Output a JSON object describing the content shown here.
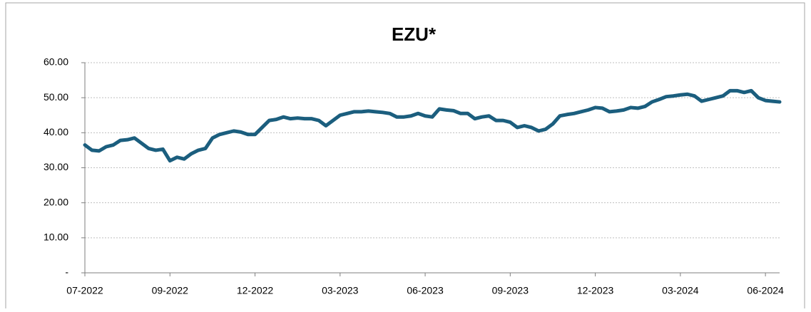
{
  "chart_data": {
    "type": "line",
    "title": "EZU*",
    "categories": [
      "07-2022",
      null,
      null,
      null,
      null,
      null,
      null,
      null,
      null,
      null,
      null,
      null,
      "09-2022",
      null,
      null,
      null,
      null,
      null,
      null,
      null,
      null,
      null,
      null,
      null,
      "12-2022",
      null,
      null,
      null,
      null,
      null,
      null,
      null,
      null,
      null,
      null,
      null,
      "03-2023",
      null,
      null,
      null,
      null,
      null,
      null,
      null,
      null,
      null,
      null,
      null,
      "06-2023",
      null,
      null,
      null,
      null,
      null,
      null,
      null,
      null,
      null,
      null,
      null,
      "09-2023",
      null,
      null,
      null,
      null,
      null,
      null,
      null,
      null,
      null,
      null,
      null,
      "12-2023",
      null,
      null,
      null,
      null,
      null,
      null,
      null,
      null,
      null,
      null,
      null,
      "03-2024",
      null,
      null,
      null,
      null,
      null,
      null,
      null,
      null,
      null,
      null,
      null,
      "06-2024",
      null,
      null
    ],
    "series": [
      {
        "name": "EZU",
        "color": "#1b5e7e",
        "values": [
          36.5,
          35,
          34.8,
          36,
          36.5,
          37.8,
          38,
          38.5,
          37,
          35.5,
          35,
          35.3,
          32,
          33,
          32.5,
          34,
          35,
          35.5,
          38.5,
          39.5,
          40,
          40.5,
          40.2,
          39.5,
          39.5,
          41.5,
          43.5,
          43.8,
          44.5,
          44,
          44.2,
          44,
          44,
          43.5,
          42,
          43.5,
          45,
          45.5,
          46,
          46,
          46.2,
          46,
          45.8,
          45.5,
          44.5,
          44.5,
          44.8,
          45.5,
          44.8,
          44.5,
          46.8,
          46.5,
          46.3,
          45.5,
          45.5,
          44,
          44.5,
          44.8,
          43.5,
          43.5,
          43,
          41.5,
          42,
          41.5,
          40.5,
          41,
          42.5,
          44.8,
          45.2,
          45.5,
          46,
          46.5,
          47.2,
          47,
          46,
          46.2,
          46.5,
          47.2,
          47,
          47.5,
          48.8,
          49.5,
          50.3,
          50.5,
          50.8,
          51,
          50.5,
          49,
          49.5,
          50,
          50.5,
          52,
          52,
          51.5,
          52,
          50,
          49.2,
          49,
          48.8
        ]
      }
    ],
    "ylim": [
      0,
      60
    ],
    "yticks": [
      {
        "value": 0,
        "label": "-"
      },
      {
        "value": 10,
        "label": "10.00"
      },
      {
        "value": 20,
        "label": "20.00"
      },
      {
        "value": 30,
        "label": "30.00"
      },
      {
        "value": 40,
        "label": "40.00"
      },
      {
        "value": 50,
        "label": "50.00"
      },
      {
        "value": 60,
        "label": "60.00"
      }
    ],
    "grid": true
  }
}
